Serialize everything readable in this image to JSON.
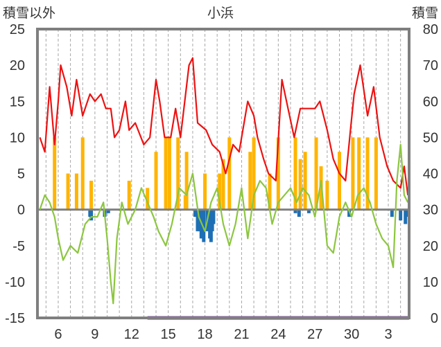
{
  "chart_data": {
    "type": "line",
    "title": "小浜",
    "left_axis_title": "積雪以外",
    "right_axis_title": "積雪",
    "x_tick_labels": [
      "6",
      "9",
      "12",
      "15",
      "18",
      "21",
      "24",
      "27",
      "30",
      "3"
    ],
    "y_left_ticks": [
      25,
      20,
      15,
      10,
      5,
      0,
      -5,
      -10,
      -15
    ],
    "y_right_ticks": [
      80,
      70,
      60,
      50,
      40,
      30,
      20,
      10,
      0
    ],
    "ylim_left": [
      -15,
      25
    ],
    "ylim_right": [
      0,
      80
    ],
    "x_range_days": [
      4.3,
      34.7
    ],
    "grid": "vertical dashed, daily",
    "colors": {
      "red_line": "#ee1111",
      "green_line": "#8cc63f",
      "orange_bars": "#ffb400",
      "blue_bars": "#1e6fb4",
      "purple_line": "#7030a0",
      "zero_line": "#808080",
      "grid": "#a6a6a6",
      "frame": "#7f7f7f"
    },
    "series": [
      {
        "axis": "left",
        "color_key": "red_line",
        "points": [
          [
            4.5,
            10
          ],
          [
            4.9,
            8
          ],
          [
            5.3,
            17
          ],
          [
            5.7,
            9
          ],
          [
            6.0,
            15
          ],
          [
            6.2,
            20
          ],
          [
            6.7,
            17
          ],
          [
            7.1,
            13
          ],
          [
            7.5,
            18
          ],
          [
            8.0,
            13
          ],
          [
            8.6,
            16
          ],
          [
            9.0,
            15
          ],
          [
            9.5,
            16
          ],
          [
            9.9,
            14
          ],
          [
            10.3,
            14
          ],
          [
            10.6,
            10
          ],
          [
            11.0,
            11
          ],
          [
            11.5,
            15
          ],
          [
            11.8,
            11
          ],
          [
            12.3,
            12
          ],
          [
            13.0,
            9
          ],
          [
            13.5,
            10
          ],
          [
            14.0,
            18
          ],
          [
            14.3,
            15
          ],
          [
            14.7,
            10
          ],
          [
            15.2,
            10
          ],
          [
            15.6,
            14
          ],
          [
            16.0,
            10
          ],
          [
            16.7,
            20
          ],
          [
            17.0,
            21
          ],
          [
            17.4,
            12
          ],
          [
            18.1,
            11
          ],
          [
            18.6,
            9
          ],
          [
            19.2,
            8
          ],
          [
            19.7,
            5
          ],
          [
            20.3,
            9
          ],
          [
            20.8,
            8
          ],
          [
            21.5,
            15
          ],
          [
            22.0,
            13
          ],
          [
            22.3,
            10
          ],
          [
            22.8,
            7
          ],
          [
            23.2,
            5
          ],
          [
            23.8,
            4
          ],
          [
            24.3,
            18
          ],
          [
            24.8,
            14
          ],
          [
            25.3,
            10
          ],
          [
            25.8,
            14
          ],
          [
            26.5,
            14
          ],
          [
            27.0,
            14
          ],
          [
            27.4,
            15
          ],
          [
            28.0,
            11
          ],
          [
            28.5,
            7
          ],
          [
            29.0,
            5
          ],
          [
            29.5,
            4
          ],
          [
            29.9,
            11
          ],
          [
            30.2,
            16
          ],
          [
            30.7,
            20
          ],
          [
            31.3,
            13
          ],
          [
            31.8,
            17
          ],
          [
            32.3,
            10
          ],
          [
            32.9,
            6
          ],
          [
            33.4,
            4
          ],
          [
            34.0,
            3
          ],
          [
            34.3,
            6
          ],
          [
            34.6,
            2
          ]
        ]
      },
      {
        "axis": "left",
        "color_key": "green_line",
        "points": [
          [
            4.5,
            0
          ],
          [
            4.9,
            2
          ],
          [
            5.3,
            1
          ],
          [
            5.7,
            -1
          ],
          [
            6.0,
            -4
          ],
          [
            6.4,
            -7
          ],
          [
            7.0,
            -5
          ],
          [
            7.6,
            -6
          ],
          [
            8.2,
            -2
          ],
          [
            8.7,
            -1
          ],
          [
            9.2,
            -1
          ],
          [
            9.7,
            1
          ],
          [
            10.0,
            -4
          ],
          [
            10.3,
            -10
          ],
          [
            10.5,
            -13
          ],
          [
            10.8,
            -4
          ],
          [
            11.2,
            1
          ],
          [
            11.7,
            -2
          ],
          [
            12.3,
            0
          ],
          [
            12.8,
            3
          ],
          [
            13.3,
            1
          ],
          [
            13.8,
            -1
          ],
          [
            14.2,
            -3
          ],
          [
            14.8,
            -5
          ],
          [
            15.3,
            -2
          ],
          [
            15.9,
            3
          ],
          [
            16.5,
            2
          ],
          [
            17.0,
            5
          ],
          [
            17.5,
            -1
          ],
          [
            18.0,
            -3
          ],
          [
            18.5,
            1
          ],
          [
            19.0,
            3
          ],
          [
            19.5,
            -2
          ],
          [
            20.0,
            -5
          ],
          [
            20.5,
            -2
          ],
          [
            21.0,
            3
          ],
          [
            21.5,
            -4
          ],
          [
            22.0,
            2
          ],
          [
            22.5,
            4
          ],
          [
            23.0,
            3
          ],
          [
            23.5,
            -2
          ],
          [
            24.0,
            1
          ],
          [
            24.5,
            2
          ],
          [
            25.0,
            3
          ],
          [
            25.5,
            1
          ],
          [
            26.0,
            3
          ],
          [
            26.5,
            2
          ],
          [
            27.0,
            -1
          ],
          [
            27.5,
            4
          ],
          [
            28.0,
            -5
          ],
          [
            28.5,
            -6
          ],
          [
            29.0,
            -1
          ],
          [
            29.5,
            1
          ],
          [
            30.0,
            -1
          ],
          [
            30.5,
            2
          ],
          [
            31.0,
            3
          ],
          [
            31.5,
            1
          ],
          [
            32.0,
            -2
          ],
          [
            32.5,
            -4
          ],
          [
            33.0,
            -5
          ],
          [
            33.4,
            -8
          ],
          [
            33.7,
            4
          ],
          [
            34.0,
            9
          ],
          [
            34.3,
            2
          ],
          [
            34.6,
            1
          ]
        ]
      },
      {
        "axis": "left",
        "color_key": "orange_bars",
        "type": "bar",
        "points": [
          [
            5.7,
            10
          ],
          [
            6.8,
            5
          ],
          [
            7.5,
            5
          ],
          [
            8.0,
            10
          ],
          [
            8.7,
            4
          ],
          [
            11.8,
            4
          ],
          [
            13.3,
            3
          ],
          [
            14.0,
            8
          ],
          [
            14.8,
            10
          ],
          [
            15.1,
            10
          ],
          [
            15.8,
            10
          ],
          [
            16.4,
            2
          ],
          [
            16.5,
            8
          ],
          [
            18.0,
            5
          ],
          [
            19.2,
            5
          ],
          [
            19.5,
            7
          ],
          [
            20.0,
            10
          ],
          [
            21.7,
            8
          ],
          [
            22.0,
            10
          ],
          [
            23.3,
            5
          ],
          [
            24.0,
            10
          ],
          [
            25.4,
            10
          ],
          [
            25.8,
            7
          ],
          [
            26.2,
            8
          ],
          [
            27.1,
            10
          ],
          [
            27.5,
            6
          ],
          [
            28.0,
            4
          ],
          [
            29.0,
            8
          ],
          [
            30.1,
            10
          ],
          [
            30.6,
            10
          ],
          [
            31.3,
            10
          ],
          [
            32.0,
            10
          ]
        ]
      },
      {
        "axis": "left",
        "color_key": "blue_bars",
        "type": "bar",
        "points": [
          [
            8.6,
            -1
          ],
          [
            8.7,
            -1.5
          ],
          [
            9.8,
            -1
          ],
          [
            10.1,
            -0.5
          ],
          [
            17.2,
            -1
          ],
          [
            17.4,
            -3
          ],
          [
            17.5,
            -2
          ],
          [
            17.6,
            -3
          ],
          [
            17.7,
            -4
          ],
          [
            17.8,
            -3
          ],
          [
            17.9,
            -4.5
          ],
          [
            18.2,
            -3
          ],
          [
            18.4,
            -4
          ],
          [
            18.5,
            -4.5
          ],
          [
            18.6,
            -3
          ],
          [
            18.7,
            -2
          ],
          [
            25.4,
            -0.5
          ],
          [
            25.7,
            -1
          ],
          [
            26.5,
            -0.5
          ],
          [
            29.8,
            -1
          ],
          [
            33.3,
            -1
          ],
          [
            34.0,
            -1.5
          ],
          [
            34.4,
            -2
          ],
          [
            34.5,
            -1
          ]
        ]
      },
      {
        "axis": "right",
        "color_key": "purple_line",
        "points": [
          [
            13.3,
            0
          ],
          [
            34.7,
            0
          ]
        ]
      }
    ]
  }
}
